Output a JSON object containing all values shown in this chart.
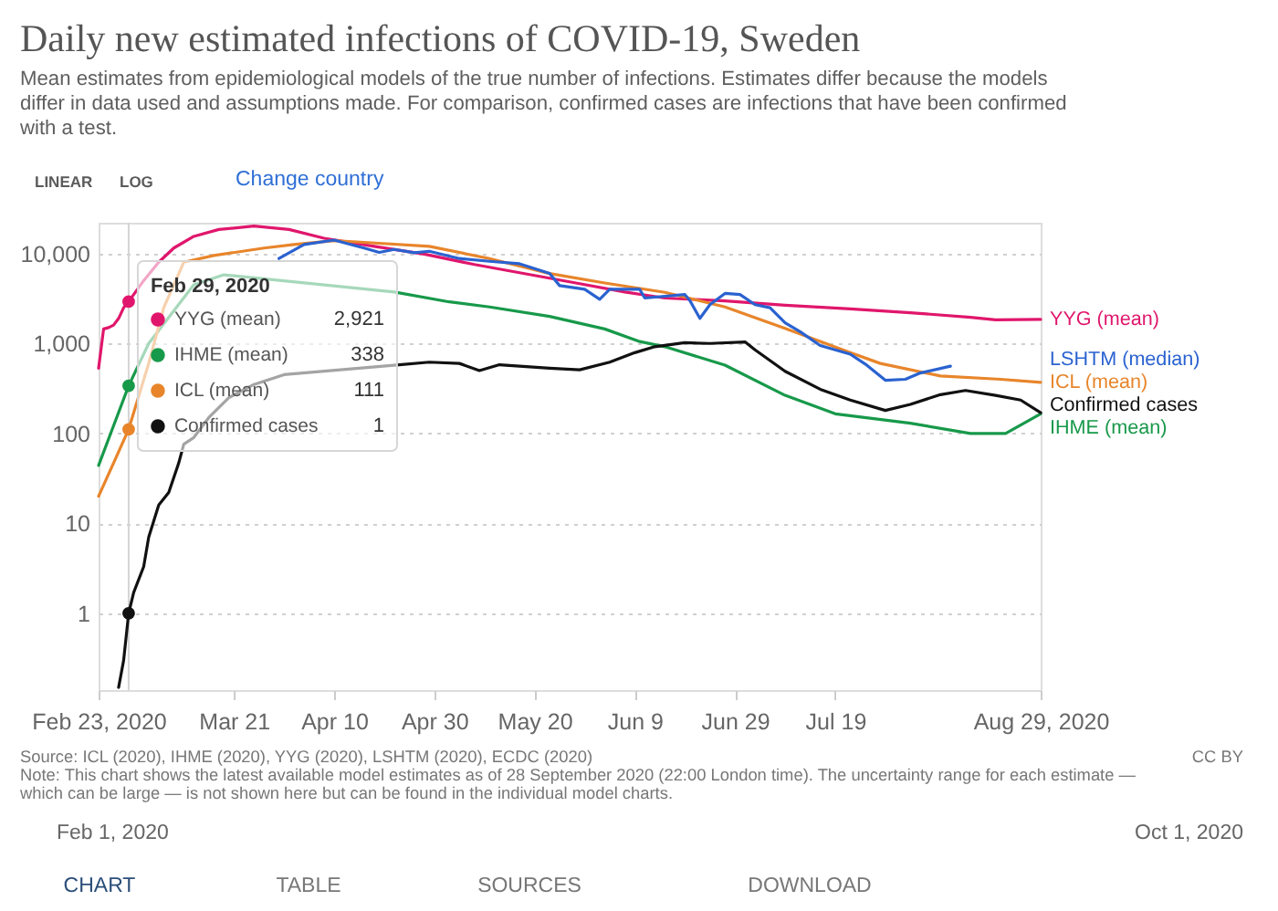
{
  "chart_data": {
    "type": "line",
    "title": "Daily new estimated infections of COVID-19, Sweden",
    "subtitle": "Mean estimates from epidemiological models of the true number of infections. Estimates differ because the models differ in data used and assumptions made. For comparison, confirmed cases are infections that have been confirmed with a test.",
    "series": [
      {
        "name": "YYG (mean)",
        "color": "#e0166c",
        "x": [
          "2020-02-23",
          "2020-02-24",
          "2020-02-25",
          "2020-02-26",
          "2020-02-27",
          "2020-02-28",
          "2020-02-29",
          "2020-03-03",
          "2020-03-06",
          "2020-03-09",
          "2020-03-13",
          "2020-03-18",
          "2020-03-25",
          "2020-04-01",
          "2020-04-08",
          "2020-04-18",
          "2020-04-28",
          "2020-05-08",
          "2020-05-18",
          "2020-05-28",
          "2020-06-07",
          "2020-06-15",
          "2020-06-27",
          "2020-07-09",
          "2020-07-22",
          "2020-08-03",
          "2020-08-15",
          "2020-08-20",
          "2020-08-29"
        ],
        "values": [
          530,
          1450,
          1500,
          1600,
          1900,
          2500,
          2921,
          5000,
          8000,
          11500,
          15500,
          18500,
          20200,
          18500,
          14800,
          12000,
          9850,
          7550,
          5980,
          4730,
          3740,
          3200,
          2970,
          2660,
          2420,
          2200,
          1950,
          1830,
          1850
        ]
      },
      {
        "name": "IHME (mean)",
        "color": "#17994a",
        "x": [
          "2020-02-23",
          "2020-02-26",
          "2020-02-29",
          "2020-03-04",
          "2020-03-13",
          "2020-03-19",
          "2020-04-22",
          "2020-05-03",
          "2020-05-11",
          "2020-05-23",
          "2020-06-03",
          "2020-06-10",
          "2020-06-15",
          "2020-06-27",
          "2020-07-09",
          "2020-07-19",
          "2020-08-03",
          "2020-08-15",
          "2020-08-22",
          "2020-08-29"
        ],
        "values": [
          44,
          122,
          338,
          1000,
          4500,
          5800,
          3740,
          2900,
          2550,
          2000,
          1450,
          1050,
          920,
          575,
          265,
          165,
          130,
          100,
          100,
          165
        ]
      },
      {
        "name": "ICL (mean)",
        "color": "#e8852b",
        "x": [
          "2020-02-23",
          "2020-02-26",
          "2020-02-29",
          "2020-03-04",
          "2020-03-07",
          "2020-03-11",
          "2020-03-17",
          "2020-03-27",
          "2020-04-02",
          "2020-04-10",
          "2020-04-19",
          "2020-04-29",
          "2020-05-11",
          "2020-05-23",
          "2020-06-03",
          "2020-06-15",
          "2020-06-27",
          "2020-07-09",
          "2020-07-22",
          "2020-07-28",
          "2020-08-09",
          "2020-08-21",
          "2020-08-29"
        ],
        "values": [
          20,
          47,
          111,
          600,
          2500,
          8000,
          9500,
          11500,
          12600,
          13900,
          13000,
          12000,
          8800,
          6000,
          4700,
          3700,
          2550,
          1470,
          790,
          600,
          435,
          400,
          370
        ]
      },
      {
        "name": "Confirmed cases",
        "color": "#111111",
        "x": [
          "2020-02-27",
          "2020-02-28",
          "2020-02-29",
          "2020-03-01",
          "2020-03-03",
          "2020-03-04",
          "2020-03-06",
          "2020-03-08",
          "2020-03-10",
          "2020-03-11",
          "2020-03-13",
          "2020-03-16",
          "2020-03-20",
          "2020-03-25",
          "2020-03-31",
          "2020-04-23",
          "2020-04-29",
          "2020-05-05",
          "2020-05-09",
          "2020-05-13",
          "2020-05-23",
          "2020-05-29",
          "2020-06-04",
          "2020-06-09",
          "2020-06-13",
          "2020-06-19",
          "2020-06-24",
          "2020-07-01",
          "2020-07-03",
          "2020-07-09",
          "2020-07-16",
          "2020-07-22",
          "2020-07-29",
          "2020-08-03",
          "2020-08-09",
          "2020-08-14",
          "2020-08-20",
          "2020-08-25",
          "2020-08-29"
        ],
        "values": [
          0.15,
          0.3,
          1,
          1.7,
          3.3,
          7,
          16,
          22,
          47,
          76,
          90,
          150,
          250,
          350,
          450,
          580,
          620,
          600,
          500,
          580,
          530,
          510,
          620,
          790,
          920,
          1020,
          1000,
          1040,
          850,
          490,
          310,
          235,
          180,
          210,
          270,
          300,
          265,
          235,
          170
        ]
      },
      {
        "name": "LSHTM (median)",
        "color": "#2a62d0",
        "x": [
          "2020-03-30",
          "2020-04-04",
          "2020-04-10",
          "2020-04-16",
          "2020-04-19",
          "2020-04-22",
          "2020-04-26",
          "2020-04-29",
          "2020-05-05",
          "2020-05-11",
          "2020-05-17",
          "2020-05-23",
          "2020-05-25",
          "2020-05-30",
          "2020-06-02",
          "2020-06-04",
          "2020-06-10",
          "2020-06-11",
          "2020-06-19",
          "2020-06-20",
          "2020-06-22",
          "2020-06-24",
          "2020-06-27",
          "2020-06-30",
          "2020-07-03",
          "2020-07-06",
          "2020-07-09",
          "2020-07-12",
          "2020-07-16",
          "2020-07-22",
          "2020-07-25",
          "2020-07-29",
          "2020-08-02",
          "2020-08-05",
          "2020-08-11"
        ],
        "values": [
          8800,
          12600,
          14100,
          11500,
          10300,
          11100,
          10200,
          10600,
          8800,
          8200,
          7700,
          6000,
          4400,
          4000,
          3100,
          4000,
          4000,
          3200,
          3500,
          3000,
          1900,
          2700,
          3600,
          3500,
          2700,
          2500,
          1700,
          1350,
          950,
          760,
          590,
          390,
          400,
          470,
          560
        ]
      }
    ],
    "xlim": [
      "2020-02-23",
      "2020-08-29"
    ],
    "xticks": [
      {
        "value": "2020-02-23",
        "label": "Feb 23, 2020"
      },
      {
        "value": "2020-03-21",
        "label": "Mar 21"
      },
      {
        "value": "2020-04-10",
        "label": "Apr 10"
      },
      {
        "value": "2020-04-30",
        "label": "Apr 30"
      },
      {
        "value": "2020-05-20",
        "label": "May 20"
      },
      {
        "value": "2020-06-09",
        "label": "Jun 9"
      },
      {
        "value": "2020-06-29",
        "label": "Jun 29"
      },
      {
        "value": "2020-07-19",
        "label": "Jul 19"
      },
      {
        "value": "2020-08-29",
        "label": "Aug 29, 2020"
      }
    ],
    "ylim": [
      0.14,
      22000
    ],
    "yticks": [
      1,
      10,
      100,
      {
        "value": 1000,
        "label": "1,000"
      },
      {
        "value": 10000,
        "label": "10,000"
      }
    ],
    "log": true,
    "grid": "y",
    "legend": "top left",
    "ref_lines": [
      {
        "axis": "x",
        "value": "2020-02-29",
        "label": "Feb 29, 2020",
        "color": "#d4d4d4"
      }
    ],
    "annotations": [
      "LINEAR",
      "LOG",
      "Change country",
      "2,921",
      "338",
      "111",
      "1",
      "Source: ICL (2020), IHME (2020), YYG (2020), LSHTM (2020), ECDC (2020)",
      "CC BY",
      "Note: This chart shows the latest available model estimates as of 28 September 2020 (22:00 London time). The uncertainty range for each estimate — which can be large — is not shown here but can be found in the individual model charts.",
      "Feb 1, 2020",
      "Oct 1, 2020",
      "CHART",
      "TABLE",
      "SOURCES",
      "DOWNLOAD"
    ]
  }
}
